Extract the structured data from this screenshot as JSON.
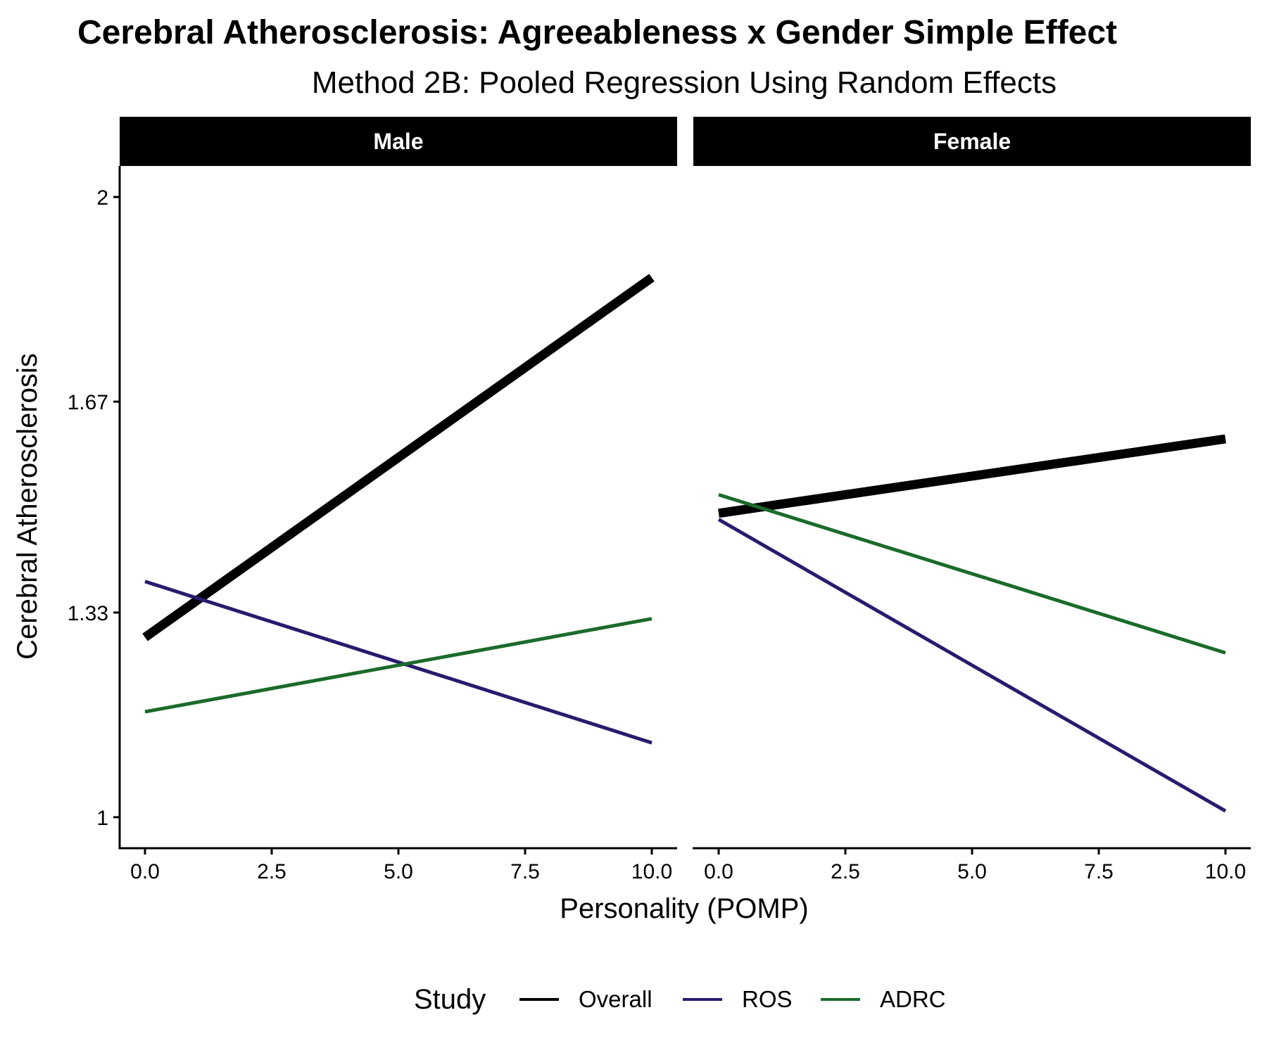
{
  "chart_data": {
    "type": "line",
    "title": "Cerebral Atherosclerosis: Agreeableness x Gender Simple Effect",
    "subtitle": "Method 2B: Pooled Regression Using Random Effects",
    "xlabel": "Personality (POMP)",
    "ylabel": "Cerebral Atherosclerosis",
    "xlim": [
      -0.5,
      10.5
    ],
    "ylim": [
      0.95,
      2.05
    ],
    "x_ticks": [
      0,
      2.5,
      5,
      7.5,
      10
    ],
    "x_tick_labels": [
      "0.0",
      "2.5",
      "5.0",
      "7.5",
      "10.0"
    ],
    "y_ticks": [
      1,
      1.33,
      1.67,
      2
    ],
    "y_tick_labels": [
      "1",
      "1.33",
      "1.67",
      "2"
    ],
    "legend": {
      "title": "Study",
      "position": "bottom",
      "entries": [
        "Overall",
        "ROS",
        "ADRC"
      ]
    },
    "grid": false,
    "panels": [
      {
        "label": "Male",
        "series": [
          {
            "name": "Overall",
            "color": "#000000",
            "x": [
              0,
              10
            ],
            "y": [
              1.29,
              1.87
            ]
          },
          {
            "name": "ROS",
            "color": "#2A1A6E",
            "x": [
              0,
              10
            ],
            "y": [
              1.38,
              1.12
            ]
          },
          {
            "name": "ADRC",
            "color": "#1B6B2A",
            "x": [
              0,
              10
            ],
            "y": [
              1.17,
              1.32
            ]
          }
        ]
      },
      {
        "label": "Female",
        "series": [
          {
            "name": "Overall",
            "color": "#000000",
            "x": [
              0,
              10
            ],
            "y": [
              1.49,
              1.61
            ]
          },
          {
            "name": "ROS",
            "color": "#2A1A6E",
            "x": [
              0,
              10
            ],
            "y": [
              1.48,
              1.01
            ]
          },
          {
            "name": "ADRC",
            "color": "#1B6B2A",
            "x": [
              0,
              10
            ],
            "y": [
              1.52,
              1.265
            ]
          }
        ]
      }
    ]
  }
}
